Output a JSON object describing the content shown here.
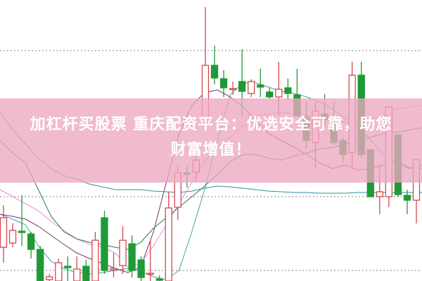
{
  "banner": {
    "line1": "加杠杆买股票 重庆配资平台：优选安全可靠，助您",
    "line2": "财富增值！"
  },
  "colors": {
    "up": "#d8464f",
    "down": "#1f9a36",
    "banner": "#eca8c0",
    "grid": "#999999"
  },
  "chart_data": {
    "type": "candlestick",
    "grid": "dotted horizontal",
    "gridlines": [
      328,
      120,
      15
    ],
    "candles": [
      {
        "o": 48,
        "h": 108,
        "l": 26,
        "c": 90
      },
      {
        "o": 54,
        "h": 82,
        "l": 48,
        "c": 72
      },
      {
        "o": 71,
        "h": 122,
        "l": 50,
        "c": 69
      },
      {
        "o": 67,
        "h": 70,
        "l": 32,
        "c": 45
      },
      {
        "o": 45,
        "h": 50,
        "l": 0,
        "c": 0
      },
      {
        "o": 2,
        "h": 10,
        "l": 0,
        "c": 6
      },
      {
        "o": 0,
        "h": 32,
        "l": 0,
        "c": 26
      },
      {
        "o": 21,
        "h": 35,
        "l": 0,
        "c": 19
      },
      {
        "o": 0,
        "h": 35,
        "l": 0,
        "c": 17
      },
      {
        "o": 21,
        "h": 30,
        "l": 0,
        "c": 0
      },
      {
        "o": 0,
        "h": 70,
        "l": 0,
        "c": 58
      },
      {
        "o": 90,
        "h": 100,
        "l": 10,
        "c": 15
      },
      {
        "o": 16,
        "h": 40,
        "l": 5,
        "c": 18
      },
      {
        "o": 22,
        "h": 78,
        "l": 10,
        "c": 58
      },
      {
        "o": 53,
        "h": 65,
        "l": 5,
        "c": 15
      },
      {
        "o": 30,
        "h": 35,
        "l": 0,
        "c": 5
      },
      {
        "o": 10,
        "h": 58,
        "l": 0,
        "c": 11
      },
      {
        "o": 3,
        "h": 8,
        "l": 0,
        "c": 1
      },
      {
        "o": 0,
        "h": 127,
        "l": 0,
        "c": 104
      },
      {
        "o": 105,
        "h": 164,
        "l": 87,
        "c": 154
      },
      {
        "o": 154,
        "h": 164,
        "l": 133,
        "c": 152
      },
      {
        "o": 155,
        "h": 182,
        "l": 142,
        "c": 172
      },
      {
        "o": 225,
        "h": 390,
        "l": 225,
        "c": 307
      },
      {
        "o": 307,
        "h": 335,
        "l": 280,
        "c": 289
      },
      {
        "o": 288,
        "h": 300,
        "l": 262,
        "c": 275
      },
      {
        "o": 273,
        "h": 284,
        "l": 265,
        "c": 274
      },
      {
        "o": 284,
        "h": 330,
        "l": 235,
        "c": 270
      },
      {
        "o": 267,
        "h": 287,
        "l": 262,
        "c": 284
      },
      {
        "o": 279,
        "h": 302,
        "l": 262,
        "c": 276
      },
      {
        "o": 269,
        "h": 275,
        "l": 260,
        "c": 262
      },
      {
        "o": 262,
        "h": 312,
        "l": 235,
        "c": 273
      },
      {
        "o": 275,
        "h": 288,
        "l": 258,
        "c": 267
      },
      {
        "o": 265,
        "h": 302,
        "l": 235,
        "c": 235
      },
      {
        "o": 233,
        "h": 255,
        "l": 188,
        "c": 200
      },
      {
        "o": 197,
        "h": 255,
        "l": 160,
        "c": 242
      },
      {
        "o": 238,
        "h": 266,
        "l": 220,
        "c": 230
      },
      {
        "o": 233,
        "h": 255,
        "l": 193,
        "c": 197
      },
      {
        "o": 200,
        "h": 205,
        "l": 170,
        "c": 180
      },
      {
        "o": 183,
        "h": 312,
        "l": 160,
        "c": 293
      },
      {
        "o": 293,
        "h": 312,
        "l": 175,
        "c": 180
      },
      {
        "o": 187,
        "h": 187,
        "l": 120,
        "c": 120
      },
      {
        "o": 120,
        "h": 165,
        "l": 95,
        "c": 127
      },
      {
        "o": 120,
        "h": 248,
        "l": 105,
        "c": 248
      },
      {
        "o": 208,
        "h": 208,
        "l": 120,
        "c": 123
      },
      {
        "o": 122,
        "h": 130,
        "l": 95,
        "c": 115
      },
      {
        "o": 115,
        "h": 173,
        "l": 82,
        "c": 173
      }
    ],
    "moving_averages": [
      {
        "color": "#3aa8a8",
        "values": [
          95,
          88,
          80,
          50,
          28,
          18,
          12,
          10,
          12,
          15,
          18,
          14,
          6,
          2,
          15,
          70,
          130,
          200,
          265,
          282,
          282,
          276,
          270,
          267,
          262,
          255,
          245,
          232,
          220,
          200,
          180,
          170,
          162,
          160
        ]
      },
      {
        "color": "#6e3a6a",
        "values": [
          95,
          92,
          88,
          78,
          65,
          52,
          40,
          32,
          25,
          18,
          12,
          20,
          70,
          140,
          210,
          250,
          268,
          272,
          262,
          248,
          228,
          210,
          200,
          190,
          180,
          168,
          160,
          165,
          158,
          160,
          165,
          170,
          160,
          165
        ]
      },
      {
        "color": "#e48ee0",
        "values": [
          130,
          120,
          110,
          100,
          85,
          72,
          60,
          52,
          48,
          40,
          20,
          25,
          50,
          80,
          110,
          140,
          170,
          190,
          205,
          220,
          234,
          238,
          240,
          238,
          236,
          232,
          228,
          226,
          225,
          230,
          235,
          245,
          248,
          250
        ]
      },
      {
        "color": "#2e7a4e",
        "values": [
          200,
          182,
          168,
          130,
          92,
          70,
          60,
          55,
          52,
          48,
          45,
          55,
          75,
          90,
          105,
          120,
          135,
          152,
          170,
          180,
          180,
          175,
          172,
          178,
          182,
          188,
          190,
          195,
          200,
          205,
          210,
          212,
          215,
          218
        ]
      },
      {
        "color": "#2f8f9a",
        "values": [
          240,
          215,
          195,
          175,
          160,
          150,
          145,
          138,
          134,
          130,
          130,
          130,
          128,
          127,
          126,
          128,
          132,
          135,
          134,
          132,
          130,
          128,
          127,
          126,
          126,
          125,
          125,
          125,
          126,
          126,
          126,
          126,
          126,
          126
        ]
      }
    ]
  }
}
